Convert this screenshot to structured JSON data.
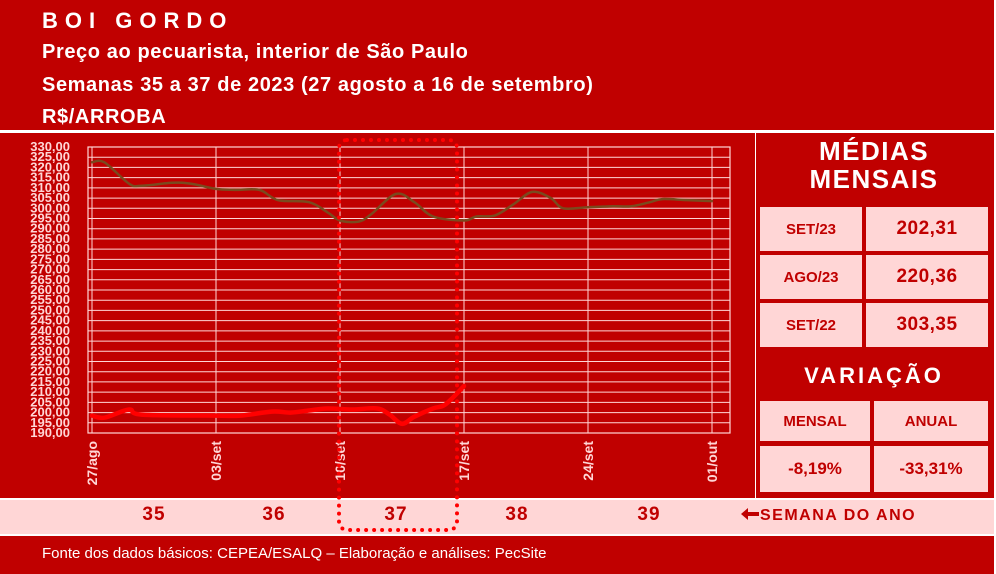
{
  "header": {
    "title": "BOI GORDO",
    "subtitle1": "Preço ao pecuarista, interior de São Paulo",
    "subtitle2": "Semanas 35 a 37 de 2023 (27 agosto a 16 de setembro)",
    "unit": "R$/ARROBA"
  },
  "colors": {
    "brand_red": "#c00000",
    "pale_pink": "#ffd6d6",
    "series_2023": "#ff0000",
    "series_2022": "#7a4a1e"
  },
  "chart_data": {
    "type": "line",
    "x": [
      "27/ago",
      "03/set",
      "10/set",
      "17/set",
      "24/set",
      "01/out"
    ],
    "ylim": [
      190,
      330
    ],
    "yticks": [
      "190,00",
      "195,00",
      "200,00",
      "205,00",
      "210,00",
      "215,00",
      "220,00",
      "225,00",
      "230,00",
      "235,00",
      "240,00",
      "245,00",
      "250,00",
      "255,00",
      "260,00",
      "265,00",
      "270,00",
      "275,00",
      "280,00",
      "285,00",
      "290,00",
      "295,00",
      "300,00",
      "305,00",
      "310,00",
      "315,00",
      "320,00",
      "325,00",
      "330,00"
    ],
    "grid": true,
    "series": [
      {
        "color": "#7a4a1e",
        "points": [
          [
            0,
            322.5
          ],
          [
            0.1,
            322.5
          ],
          [
            0.3,
            312
          ],
          [
            0.4,
            311
          ],
          [
            0.65,
            312.5
          ],
          [
            0.8,
            312
          ],
          [
            1.0,
            309.5
          ],
          [
            1.15,
            309
          ],
          [
            1.35,
            309
          ],
          [
            1.5,
            304
          ],
          [
            1.75,
            303
          ],
          [
            1.9,
            298
          ],
          [
            2.0,
            294
          ],
          [
            2.15,
            293.5
          ],
          [
            2.25,
            297
          ],
          [
            2.45,
            307
          ],
          [
            2.6,
            303
          ],
          [
            2.75,
            296
          ],
          [
            3.0,
            294
          ],
          [
            3.1,
            296
          ],
          [
            3.25,
            296.5
          ],
          [
            3.4,
            302
          ],
          [
            3.55,
            308
          ],
          [
            3.7,
            305
          ],
          [
            3.8,
            300
          ],
          [
            4.0,
            300.5
          ],
          [
            4.2,
            301
          ],
          [
            4.35,
            301
          ],
          [
            4.5,
            303
          ],
          [
            4.6,
            304.5
          ],
          [
            4.8,
            304
          ],
          [
            5.0,
            303.5
          ]
        ]
      },
      {
        "color": "#ff0000",
        "points": [
          [
            0,
            198.5
          ],
          [
            0.1,
            197.5
          ],
          [
            0.3,
            201.5
          ],
          [
            0.4,
            199
          ],
          [
            1.0,
            198.5
          ],
          [
            1.2,
            198.5
          ],
          [
            1.45,
            200.5
          ],
          [
            1.6,
            200
          ],
          [
            1.75,
            201
          ],
          [
            1.9,
            202
          ],
          [
            2.1,
            201.5
          ],
          [
            2.3,
            202
          ],
          [
            2.4,
            199
          ],
          [
            2.5,
            194.5
          ],
          [
            2.6,
            198
          ],
          [
            2.75,
            202
          ],
          [
            2.85,
            204
          ],
          [
            3.0,
            213
          ]
        ]
      }
    ]
  },
  "panel": {
    "title_line1": "MÉDIAS",
    "title_line2": "MENSAIS",
    "rows": [
      {
        "label": "SET/23",
        "value": "202,31"
      },
      {
        "label": "AGO/23",
        "value": "220,36"
      },
      {
        "label": "SET/22",
        "value": "303,35"
      }
    ],
    "variation_title": "VARIAÇÃO",
    "mensal_label": "MENSAL",
    "anual_label": "ANUAL",
    "mensal_value": "-8,19%",
    "anual_value": "-33,31%"
  },
  "weeks": {
    "items": [
      "35",
      "36",
      "37",
      "38",
      "39"
    ],
    "label": "SEMANA DO ANO",
    "arrow_icon": "arrow-left-icon"
  },
  "footer": {
    "text": "Fonte dos dados básicos: CEPEA/ESALQ – Elaboração e análises: PecSite"
  }
}
